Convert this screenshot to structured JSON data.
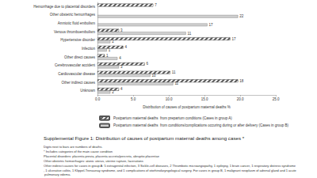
{
  "chart_data": {
    "type": "bar",
    "orientation": "horizontal",
    "title": "Supplemental Figure 1: Distribution of causes of postpartum maternal deaths among cases *",
    "x_label": "Distribution of causes of postpartum maternal deaths %",
    "categories": [
      "Hemorrhage due to placental disorders",
      "Other obstetric hemorrhages",
      "Amniotic fluid embolism",
      "Venous thromboembolism",
      "Hypertensive disorder",
      "Infection",
      "Other direct causes",
      "Cerebrovascular accident",
      "Cardiovascular disease",
      "Other indirect causes",
      "Unknown"
    ],
    "series": [
      {
        "name": "Postpartum maternal deaths  from prepartum conditions (Cases in group A)",
        "color": "#555555",
        "values": [
          7.8,
          null,
          null,
          3.0,
          18.6,
          3.6,
          1.0,
          6.6,
          10.2,
          19.7,
          3.0
        ],
        "deaths": [
          7,
          null,
          null,
          3,
          17,
          4,
          1,
          6,
          11,
          18,
          4
        ]
      },
      {
        "name": "Postpartum maternal deaths  from conditions/complications occuring during or after delivery (Cases in group B)",
        "color": "#d0d0d0",
        "values": [
          null,
          19.7,
          15.4,
          12.4,
          1.8,
          1.3,
          2.8,
          3.0,
          7.4,
          10.6,
          1.8
        ],
        "deaths": [
          null,
          22,
          17,
          11,
          2,
          1,
          4,
          3,
          10,
          11,
          2
        ]
      }
    ],
    "xlim": [
      0,
      25
    ],
    "xticks": [
      {
        "value": 0,
        "label": "0.0"
      },
      {
        "value": 5,
        "label": "5.0"
      },
      {
        "value": 10,
        "label": "10.0"
      },
      {
        "value": 15,
        "label": "15.0"
      },
      {
        "value": 20,
        "label": "20.0"
      },
      {
        "value": 25,
        "label": "25.0"
      }
    ],
    "grid": false,
    "legend": "bottom",
    "footnotes": [
      "Digits next to bars are numbers of deaths.",
      "* Includes categories of the main cause condition",
      "Placental disorders: placenta previa, placenta accreta/percreta, abruptio placentae",
      "Other obstetric hemorrhages: atonic uterus, uterine rupture, lacerations",
      "Other indirect causes for cases in group A: 5 extragenital infection, 3 Sickle-cell diseases, 2 Thrombotic microangiopathy, 1 epilepsy, 1 brain cancer, 1 respiratory distress syndrome, 1 ulcerative colitis, 1 Klippel-Trenaunay syndrome, and 1 complications of otorhinolaryngological surgery. For cases in group B, 1 malignant neoplasm of adrenal gland and 1 acute pulmonary edema."
    ]
  }
}
